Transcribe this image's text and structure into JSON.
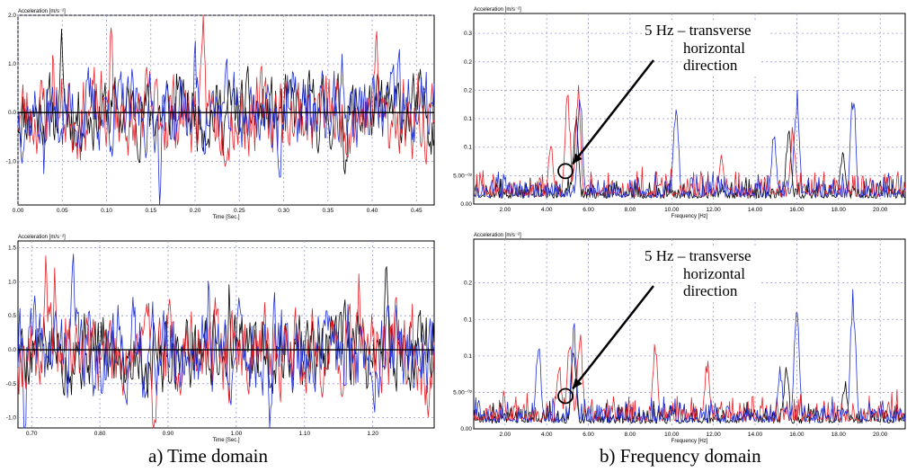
{
  "captions": {
    "left": "a) Time domain",
    "right": "b) Frequency domain"
  },
  "colors": {
    "grid": "#9999cc",
    "black": "#000000",
    "red": "#e8232a",
    "blue": "#1f2fd6"
  },
  "chart_data": [
    {
      "id": "time-top",
      "type": "line",
      "ylabel": "Acceleration [m/s⁻²]",
      "xlabel": "Time [Sec.]",
      "xlim": [
        0.0,
        0.47
      ],
      "ylim": [
        -1.9,
        2.0
      ],
      "xticks": [
        0.0,
        0.05,
        0.1,
        0.15,
        0.2,
        0.25,
        0.3,
        0.35,
        0.4,
        0.45
      ],
      "xtick_labels": [
        "0.00",
        "0.05",
        "0.10",
        "0.15",
        "0.20",
        "0.25",
        "0.30",
        "0.35",
        "0.40",
        "0.45"
      ],
      "yticks": [
        -1.0,
        0.0,
        1.0,
        2.0
      ],
      "ytick_labels": [
        "-1.0",
        "0.0",
        "1.0",
        "2.0"
      ],
      "grid": true,
      "zero_line": true,
      "series": [
        {
          "color": "black",
          "amp": 0.36,
          "seed": 11,
          "peaks": [
            [
              0.05,
              1.25
            ],
            [
              0.18,
              0.8
            ],
            [
              0.37,
              -0.85
            ]
          ]
        },
        {
          "color": "red",
          "amp": 0.42,
          "seed": 23,
          "peaks": [
            [
              0.04,
              1.25
            ],
            [
              0.105,
              1.5
            ],
            [
              0.21,
              1.3
            ],
            [
              0.405,
              1.45
            ],
            [
              0.13,
              -1.05
            ],
            [
              0.42,
              -1.1
            ]
          ]
        },
        {
          "color": "blue",
          "amp": 0.4,
          "seed": 37,
          "peaks": [
            [
              0.03,
              -1.1
            ],
            [
              0.16,
              -1.05
            ],
            [
              0.2,
              0.95
            ],
            [
              0.365,
              1.0
            ],
            [
              0.43,
              1.1
            ],
            [
              0.295,
              -1.0
            ]
          ]
        }
      ]
    },
    {
      "id": "time-bottom",
      "type": "line",
      "ylabel": "Acceleration [m/s⁻²]",
      "xlabel": "Time [Sec.]",
      "xlim": [
        0.68,
        1.29
      ],
      "ylim": [
        -1.15,
        1.6
      ],
      "xticks": [
        0.7,
        0.8,
        0.9,
        1.0,
        1.1,
        1.2
      ],
      "xtick_labels": [
        "0.70",
        "0.80",
        "0.90",
        "1.00",
        "1.10",
        "1.20"
      ],
      "yticks": [
        -1.0,
        -0.5,
        0.0,
        0.5,
        1.0,
        1.5
      ],
      "ytick_labels": [
        "-1.0",
        "-0.5",
        "0.0",
        "0.5",
        "1.0",
        "1.5"
      ],
      "grid": true,
      "zero_line": true,
      "series": [
        {
          "color": "black",
          "amp": 0.28,
          "seed": 5,
          "peaks": [
            [
              0.99,
              0.85
            ],
            [
              1.22,
              1.1
            ],
            [
              0.87,
              -0.55
            ]
          ]
        },
        {
          "color": "red",
          "amp": 0.32,
          "seed": 19,
          "peaks": [
            [
              0.72,
              1.35
            ],
            [
              0.735,
              0.95
            ],
            [
              0.88,
              -1.0
            ],
            [
              1.18,
              1.15
            ],
            [
              1.28,
              -0.85
            ]
          ]
        },
        {
          "color": "blue",
          "amp": 0.32,
          "seed": 41,
          "peaks": [
            [
              0.76,
              1.2
            ],
            [
              0.69,
              -0.95
            ],
            [
              0.96,
              1.0
            ],
            [
              1.05,
              -1.1
            ],
            [
              1.16,
              -1.0
            ]
          ]
        }
      ]
    },
    {
      "id": "freq-top",
      "type": "line",
      "ylabel": "Acceleration [m/s⁻²]",
      "xlabel": "Frequency [Hz]",
      "xlim": [
        0.5,
        21.2
      ],
      "ylim": [
        0.0,
        0.335
      ],
      "xticks": [
        2,
        4,
        6,
        8,
        10,
        12,
        14,
        16,
        18,
        20
      ],
      "xtick_labels": [
        "2.00",
        "4.00",
        "6.00",
        "8.00",
        "10.00",
        "12.00",
        "14.00",
        "16.00",
        "18.00",
        "20.00"
      ],
      "yticks": [
        0.0,
        0.05,
        0.1,
        0.15,
        0.2,
        0.25,
        0.3
      ],
      "ytick_labels": [
        "0.00",
        "5.00⁻⁰²",
        "0.1",
        "0.1",
        "0.2",
        "0.2",
        "0.3"
      ],
      "grid": true,
      "series": [
        {
          "color": "black",
          "amp": 0.04,
          "seed": 7,
          "peaks": [
            [
              5.4,
              0.17
            ],
            [
              15.6,
              0.14
            ],
            [
              18.2,
              0.1
            ]
          ]
        },
        {
          "color": "red",
          "amp": 0.05,
          "seed": 29,
          "peaks": [
            [
              5.0,
              0.22
            ],
            [
              5.5,
              0.22
            ],
            [
              4.2,
              0.12
            ],
            [
              12.4,
              0.09
            ],
            [
              15.8,
              0.14
            ]
          ]
        },
        {
          "color": "blue",
          "amp": 0.045,
          "seed": 53,
          "peaks": [
            [
              5.6,
              0.2
            ],
            [
              10.2,
              0.19
            ],
            [
              16.0,
              0.21
            ],
            [
              18.7,
              0.22
            ],
            [
              14.9,
              0.13
            ]
          ]
        }
      ],
      "annotation": {
        "text_lines": [
          "5 Hz – transverse",
          "horizontal",
          "direction"
        ],
        "target_x": 4.9,
        "target_y": 0.058
      }
    },
    {
      "id": "freq-bottom",
      "type": "line",
      "ylabel": "Acceleration [m/s⁻²]",
      "xlabel": "Frequency [Hz]",
      "xlim": [
        0.5,
        21.2
      ],
      "ylim": [
        0.0,
        0.26
      ],
      "xticks": [
        2,
        4,
        6,
        8,
        10,
        12,
        14,
        16,
        18,
        20
      ],
      "xtick_labels": [
        "2.00",
        "4.00",
        "6.00",
        "8.00",
        "10.00",
        "12.00",
        "14.00",
        "16.00",
        "18.00",
        "20.00"
      ],
      "yticks": [
        0.0,
        0.05,
        0.1,
        0.15,
        0.2
      ],
      "ytick_labels": [
        "0.00",
        "5.00⁻⁰²",
        "0.1",
        "0.1",
        "0.2"
      ],
      "grid": true,
      "series": [
        {
          "color": "black",
          "amp": 0.03,
          "seed": 3,
          "peaks": [
            [
              5.3,
              0.12
            ],
            [
              15.5,
              0.09
            ],
            [
              18.3,
              0.07
            ]
          ]
        },
        {
          "color": "red",
          "amp": 0.04,
          "seed": 17,
          "peaks": [
            [
              5.1,
              0.145
            ],
            [
              5.6,
              0.145
            ],
            [
              9.2,
              0.12
            ],
            [
              11.7,
              0.1
            ],
            [
              4.6,
              0.09
            ]
          ]
        },
        {
          "color": "blue",
          "amp": 0.035,
          "seed": 61,
          "peaks": [
            [
              3.6,
              0.125
            ],
            [
              5.3,
              0.15
            ],
            [
              16.0,
              0.19
            ],
            [
              18.7,
              0.2
            ],
            [
              15.2,
              0.09
            ]
          ]
        }
      ],
      "annotation": {
        "text_lines": [
          "5 Hz – transverse",
          "horizontal",
          "direction"
        ],
        "target_x": 4.9,
        "target_y": 0.045
      }
    }
  ]
}
